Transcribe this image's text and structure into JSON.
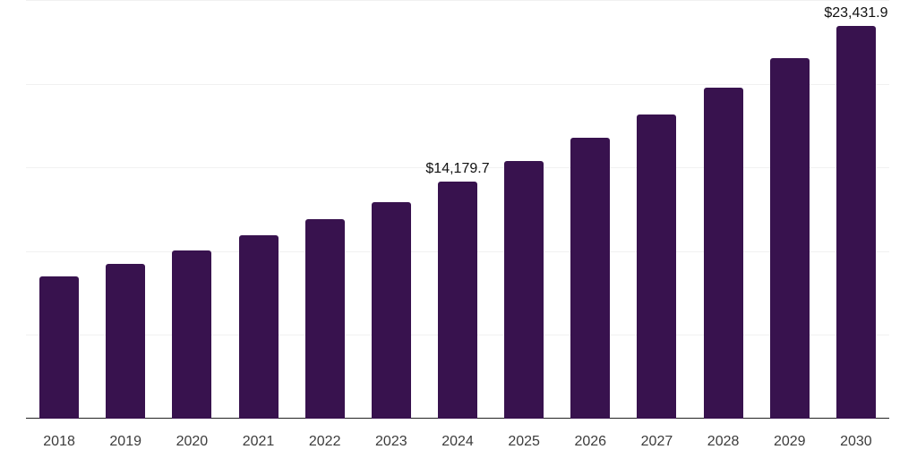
{
  "chart": {
    "background": "#ffffff",
    "bar_color": "#38124E",
    "gridline_color": "#f1f1f1",
    "axis_line_color": "#222222",
    "tick_label_color": "#3c3c3c",
    "data_label_color": "#111111"
  },
  "chart_data": {
    "type": "bar",
    "title": "",
    "xlabel": "",
    "ylabel": "",
    "categories": [
      "2018",
      "2019",
      "2020",
      "2021",
      "2022",
      "2023",
      "2024",
      "2025",
      "2026",
      "2027",
      "2028",
      "2029",
      "2030"
    ],
    "values": [
      8500,
      9250,
      10050,
      10960,
      11920,
      12930,
      14179.7,
      15390,
      16780,
      18170,
      19780,
      21540,
      23431.9
    ],
    "data_labels": [
      "",
      "",
      "",
      "",
      "",
      "",
      "$14,179.7",
      "",
      "",
      "",
      "",
      "",
      "$23,431.9"
    ],
    "ylim": [
      0,
      25000
    ],
    "gridline_values": [
      5000,
      10000,
      15000,
      20000,
      25000
    ],
    "grid": true,
    "legend": false
  }
}
